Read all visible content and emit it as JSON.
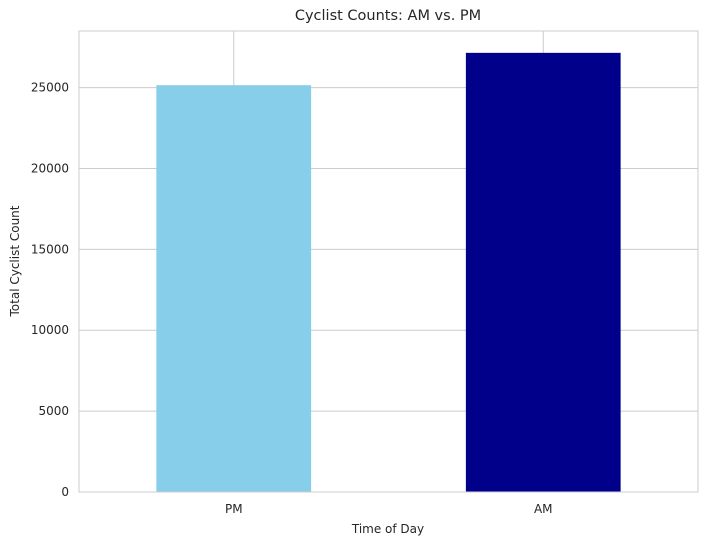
{
  "chart_data": {
    "type": "bar",
    "title": "Cyclist Counts: AM vs. PM",
    "xlabel": "Time of Day",
    "ylabel": "Total Cyclist Count",
    "categories": [
      "PM",
      "AM"
    ],
    "values": [
      25150,
      27150
    ],
    "colors": [
      "#87ceeb",
      "#00008b"
    ],
    "ylim": [
      0,
      28500
    ],
    "yticks": [
      0,
      5000,
      10000,
      15000,
      20000,
      25000
    ],
    "grid": true,
    "legend": "none"
  }
}
